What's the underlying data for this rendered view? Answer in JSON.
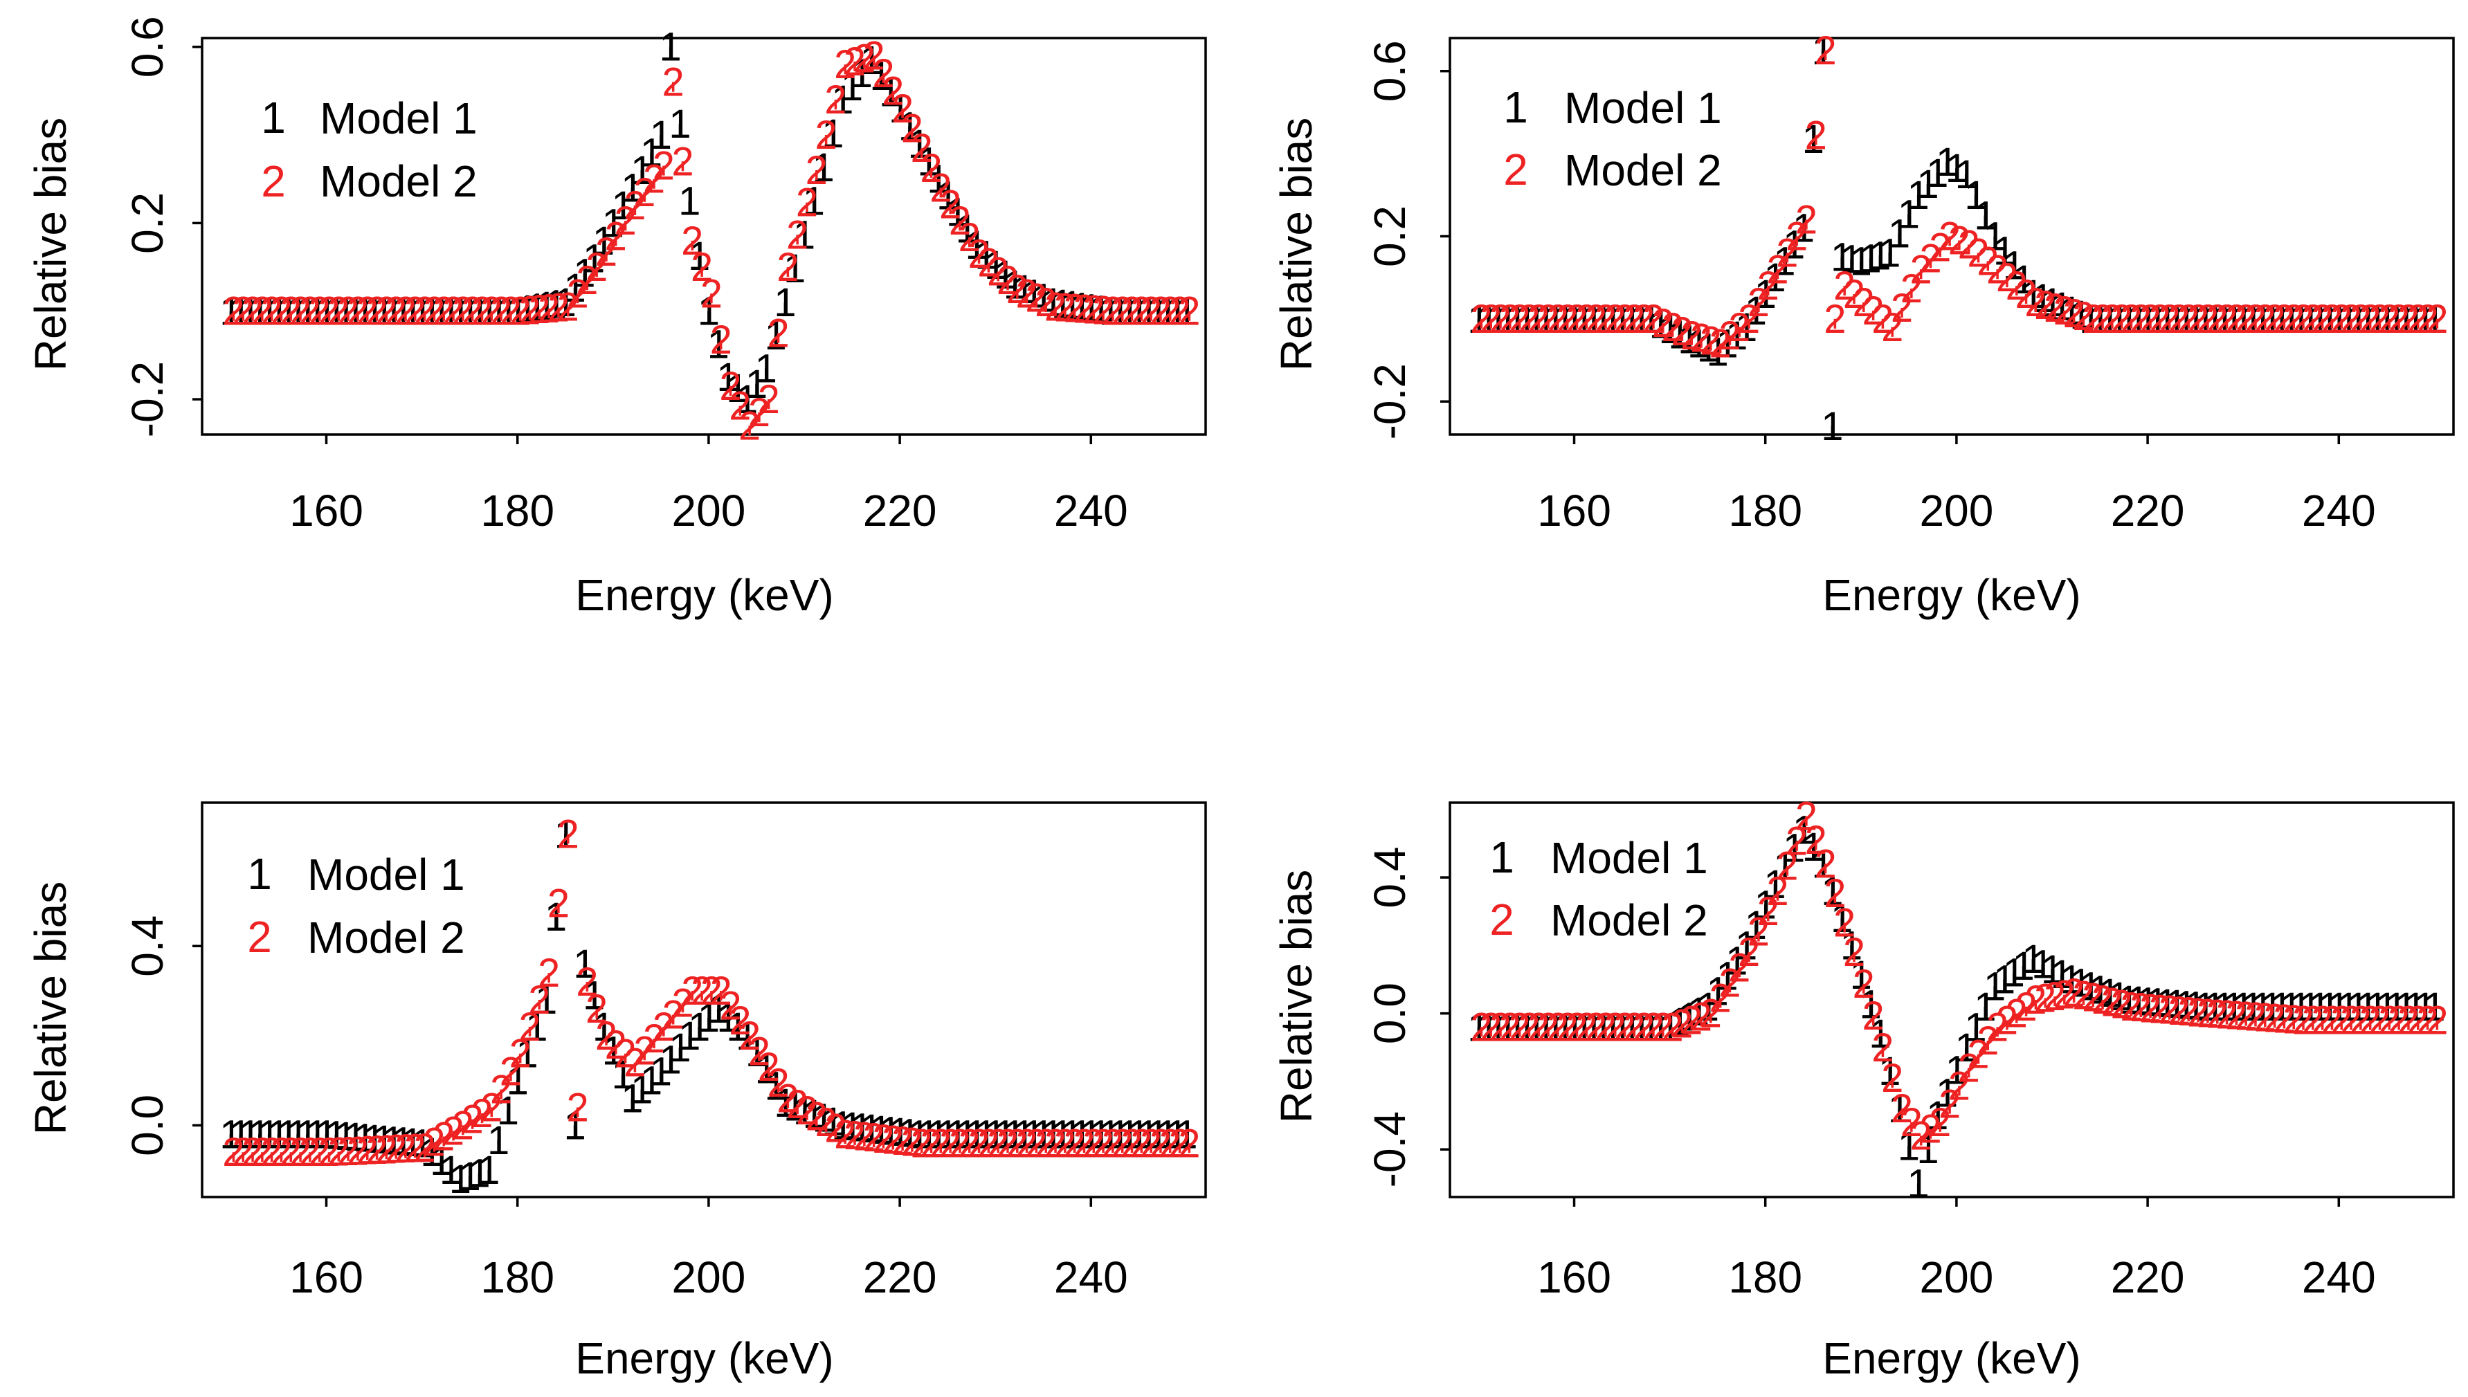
{
  "chart_data": [
    {
      "type": "line",
      "xlabel": "Energy (keV)",
      "ylabel": "Relative bias",
      "xlim": [
        147,
        252
      ],
      "ylim": [
        -0.28,
        0.62
      ],
      "xticks": [
        160,
        180,
        200,
        220,
        240
      ],
      "yticks": [
        -0.2,
        0.2,
        0.6
      ],
      "ytick_labels": [
        "-0.2",
        "0.2",
        "0.6"
      ],
      "legend_position": "top-left",
      "series": [
        {
          "name": "Model 1",
          "symbol": "1",
          "color": "#000000",
          "x": [
            150,
            160,
            170,
            180,
            185,
            188,
            192,
            195,
            196,
            198,
            200,
            202,
            204,
            206,
            208,
            211,
            214,
            217,
            220,
            224,
            228,
            232,
            236,
            242,
            250
          ],
          "y": [
            0.0,
            0.0,
            0.0,
            0.0,
            0.02,
            0.12,
            0.28,
            0.4,
            0.6,
            0.25,
            0.0,
            -0.15,
            -0.2,
            -0.13,
            0.02,
            0.25,
            0.48,
            0.57,
            0.46,
            0.3,
            0.15,
            0.06,
            0.02,
            0.0,
            0.0
          ]
        },
        {
          "name": "Model 2",
          "symbol": "2",
          "color": "#ee2222",
          "x": [
            150,
            160,
            170,
            180,
            185,
            188,
            192,
            195,
            196,
            198,
            200,
            202,
            204,
            206,
            208,
            211,
            214,
            217,
            220,
            224,
            228,
            232,
            236,
            242,
            250
          ],
          "y": [
            0.0,
            0.0,
            0.0,
            0.0,
            0.01,
            0.1,
            0.24,
            0.33,
            0.52,
            0.16,
            0.04,
            -0.17,
            -0.26,
            -0.2,
            0.1,
            0.32,
            0.56,
            0.58,
            0.46,
            0.28,
            0.13,
            0.05,
            0.01,
            0.0,
            0.0
          ]
        }
      ]
    },
    {
      "type": "line",
      "xlabel": "Energy (keV)",
      "ylabel": "Relative bias",
      "xlim": [
        147,
        252
      ],
      "ylim": [
        -0.28,
        0.68
      ],
      "xticks": [
        160,
        180,
        200,
        220,
        240
      ],
      "yticks": [
        -0.2,
        0.2,
        0.6
      ],
      "ytick_labels": [
        "-0.2",
        "0.2",
        "0.6"
      ],
      "legend_position": "top-left",
      "series": [
        {
          "name": "Model 1",
          "symbol": "1",
          "color": "#000000",
          "x": [
            150,
            160,
            168,
            172,
            175,
            178,
            181,
            184,
            186,
            187,
            188,
            190,
            193,
            196,
            199,
            201,
            204,
            208,
            214,
            222,
            230,
            240,
            250
          ],
          "y": [
            0.0,
            0.0,
            0.0,
            -0.05,
            -0.08,
            -0.02,
            0.1,
            0.22,
            0.65,
            -0.26,
            0.15,
            0.14,
            0.16,
            0.3,
            0.38,
            0.35,
            0.2,
            0.06,
            0.0,
            0.0,
            0.0,
            0.0,
            0.0
          ]
        },
        {
          "name": "Model 2",
          "symbol": "2",
          "color": "#ee2222",
          "x": [
            150,
            160,
            168,
            172,
            175,
            178,
            181,
            184,
            186,
            187,
            188,
            190,
            193,
            196,
            199,
            201,
            204,
            208,
            214,
            222,
            230,
            240,
            250
          ],
          "y": [
            0.0,
            0.0,
            0.0,
            -0.04,
            -0.06,
            0.0,
            0.12,
            0.24,
            0.65,
            0.0,
            0.08,
            0.04,
            -0.02,
            0.12,
            0.2,
            0.18,
            0.12,
            0.04,
            0.0,
            0.0,
            0.0,
            0.0,
            0.0
          ]
        }
      ]
    },
    {
      "type": "line",
      "xlabel": "Energy (keV)",
      "ylabel": "Relative bias",
      "xlim": [
        147,
        252
      ],
      "ylim": [
        -0.16,
        0.72
      ],
      "xticks": [
        160,
        180,
        200,
        220,
        240
      ],
      "yticks": [
        0.0,
        0.4
      ],
      "ytick_labels": [
        "0.0",
        "0.4"
      ],
      "legend_position": "top-left",
      "series": [
        {
          "name": "Model 1",
          "symbol": "1",
          "color": "#000000",
          "x": [
            150,
            160,
            170,
            174,
            177,
            180,
            183,
            185,
            186,
            187,
            189,
            192,
            195,
            198,
            201,
            204,
            208,
            214,
            222,
            232,
            242,
            250
          ],
          "y": [
            -0.02,
            -0.02,
            -0.04,
            -0.12,
            -0.1,
            0.1,
            0.28,
            0.65,
            0.0,
            0.36,
            0.22,
            0.06,
            0.12,
            0.2,
            0.26,
            0.2,
            0.05,
            0.0,
            -0.02,
            -0.02,
            -0.02,
            -0.02
          ]
        },
        {
          "name": "Model 2",
          "symbol": "2",
          "color": "#ee2222",
          "x": [
            150,
            160,
            170,
            174,
            177,
            180,
            183,
            185,
            186,
            187,
            189,
            192,
            195,
            198,
            201,
            204,
            208,
            214,
            222,
            232,
            242,
            250
          ],
          "y": [
            -0.06,
            -0.06,
            -0.05,
            0.0,
            0.04,
            0.16,
            0.34,
            0.65,
            0.04,
            0.32,
            0.2,
            0.14,
            0.22,
            0.3,
            0.3,
            0.2,
            0.06,
            -0.02,
            -0.04,
            -0.04,
            -0.04,
            -0.04
          ]
        }
      ]
    },
    {
      "type": "line",
      "xlabel": "Energy (keV)",
      "ylabel": "Relative bias",
      "xlim": [
        147,
        252
      ],
      "ylim": [
        -0.54,
        0.62
      ],
      "xticks": [
        160,
        180,
        200,
        220,
        240
      ],
      "yticks": [
        -0.4,
        0.0,
        0.4
      ],
      "ytick_labels": [
        "-0.4",
        "0.0",
        "0.4"
      ],
      "legend_position": "top-left",
      "series": [
        {
          "name": "Model 1",
          "symbol": "1",
          "color": "#000000",
          "x": [
            150,
            160,
            170,
            174,
            178,
            181,
            184,
            186,
            189,
            192,
            194,
            196,
            198,
            201,
            204,
            208,
            212,
            218,
            226,
            236,
            250
          ],
          "y": [
            -0.04,
            -0.04,
            -0.04,
            0.02,
            0.2,
            0.38,
            0.54,
            0.44,
            0.2,
            -0.06,
            -0.28,
            -0.5,
            -0.3,
            -0.1,
            0.08,
            0.16,
            0.1,
            0.04,
            0.02,
            0.02,
            0.02
          ]
        },
        {
          "name": "Model 2",
          "symbol": "2",
          "color": "#ee2222",
          "x": [
            150,
            160,
            170,
            174,
            178,
            181,
            184,
            186,
            189,
            192,
            194,
            196,
            198,
            201,
            204,
            208,
            212,
            218,
            226,
            236,
            250
          ],
          "y": [
            -0.04,
            -0.04,
            -0.04,
            0.0,
            0.18,
            0.36,
            0.58,
            0.44,
            0.18,
            -0.1,
            -0.28,
            -0.36,
            -0.32,
            -0.16,
            -0.04,
            0.04,
            0.06,
            0.02,
            0.0,
            -0.02,
            -0.02
          ]
        }
      ]
    }
  ]
}
